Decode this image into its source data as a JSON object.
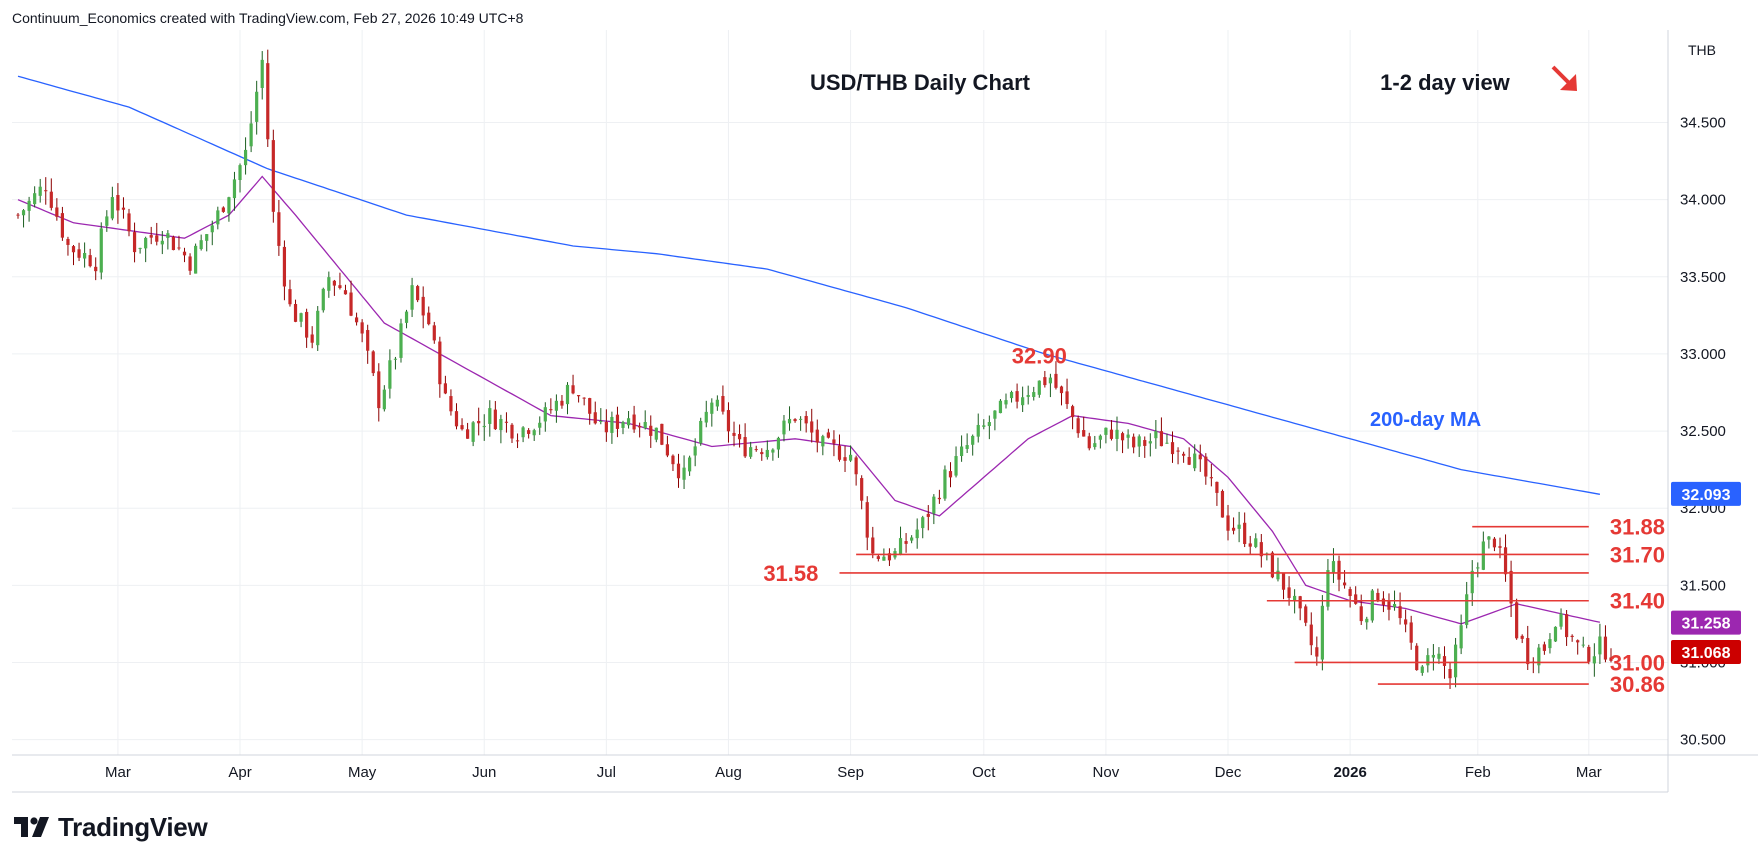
{
  "header": {
    "text": "Continuum_Economics created with TradingView.com, Feb 27, 2026 10:49 UTC+8"
  },
  "logo": {
    "text": "TradingView"
  },
  "colors": {
    "up": "#26a69a",
    "up_body": "#4caf50",
    "down": "#ef5350",
    "down_body": "#c62828",
    "ma200": "#2962ff",
    "ma_short": "#9c27b0",
    "level": "#e53935",
    "grid": "#eef0f3",
    "price_tag": "#cc0000",
    "ma200_tag": "#2962ff",
    "ma_short_tag": "#9c27b0"
  },
  "chart_data": {
    "type": "candlestick",
    "title": "USD/THB Daily Chart",
    "subtitle": "1-2 day view",
    "direction_icon": "arrow-down-right-icon",
    "currency": "THB",
    "x_labels": [
      "Mar",
      "Apr",
      "May",
      "Jun",
      "Jul",
      "Aug",
      "Sep",
      "Oct",
      "Nov",
      "Dec",
      "2026",
      "Feb",
      "Mar"
    ],
    "y_ticks": [
      "34.500",
      "34.000",
      "33.500",
      "33.000",
      "32.500",
      "32.000",
      "31.500",
      "31.000",
      "30.500"
    ],
    "ylim": [
      30.4,
      35.1
    ],
    "series_labels": {
      "ma200": "200-day MA"
    },
    "price_tags": {
      "ma200": "32.093",
      "ma_short": "31.258",
      "last": "31.068"
    },
    "levels": [
      {
        "label": "32.90",
        "value": 32.9
      },
      {
        "label": "31.88",
        "value": 31.88
      },
      {
        "label": "31.70",
        "value": 31.7
      },
      {
        "label": "31.58",
        "value": 31.58
      },
      {
        "label": "31.40",
        "value": 31.4
      },
      {
        "label": "31.00",
        "value": 31.0
      },
      {
        "label": "30.86",
        "value": 30.86
      }
    ],
    "close_path": [
      [
        0,
        33.9
      ],
      [
        5,
        34.1
      ],
      [
        9,
        33.7
      ],
      [
        14,
        33.6
      ],
      [
        17,
        34.05
      ],
      [
        21,
        33.7
      ],
      [
        26,
        33.8
      ],
      [
        31,
        33.6
      ],
      [
        36,
        33.9
      ],
      [
        41,
        34.3
      ],
      [
        44,
        34.9
      ],
      [
        46,
        33.9
      ],
      [
        49,
        33.3
      ],
      [
        53,
        33.1
      ],
      [
        56,
        33.5
      ],
      [
        59,
        33.4
      ],
      [
        62,
        33.1
      ],
      [
        65,
        32.7
      ],
      [
        68,
        33.0
      ],
      [
        71,
        33.4
      ],
      [
        74,
        33.2
      ],
      [
        77,
        32.7
      ],
      [
        80,
        32.5
      ],
      [
        85,
        32.6
      ],
      [
        90,
        32.5
      ],
      [
        95,
        32.6
      ],
      [
        100,
        32.8
      ],
      [
        105,
        32.5
      ],
      [
        110,
        32.6
      ],
      [
        115,
        32.5
      ],
      [
        120,
        32.2
      ],
      [
        125,
        32.7
      ],
      [
        130,
        32.4
      ],
      [
        135,
        32.4
      ],
      [
        140,
        32.6
      ],
      [
        145,
        32.4
      ],
      [
        150,
        32.35
      ],
      [
        154,
        31.7
      ],
      [
        158,
        31.7
      ],
      [
        163,
        31.9
      ],
      [
        167,
        32.2
      ],
      [
        171,
        32.4
      ],
      [
        176,
        32.6
      ],
      [
        181,
        32.75
      ],
      [
        186,
        32.85
      ],
      [
        189,
        32.65
      ],
      [
        193,
        32.4
      ],
      [
        197,
        32.5
      ],
      [
        201,
        32.4
      ],
      [
        205,
        32.45
      ],
      [
        210,
        32.4
      ],
      [
        214,
        32.2
      ],
      [
        218,
        31.9
      ],
      [
        222,
        31.8
      ],
      [
        226,
        31.6
      ],
      [
        229,
        31.45
      ],
      [
        232,
        31.2
      ],
      [
        234,
        31.02
      ],
      [
        236,
        31.65
      ],
      [
        239,
        31.5
      ],
      [
        242,
        31.3
      ],
      [
        245,
        31.45
      ],
      [
        248,
        31.35
      ],
      [
        251,
        31.1
      ],
      [
        253,
        30.92
      ],
      [
        255,
        31.1
      ],
      [
        258,
        30.9
      ],
      [
        260,
        31.2
      ],
      [
        262,
        31.6
      ],
      [
        264,
        31.75
      ],
      [
        266,
        31.8
      ],
      [
        268,
        31.55
      ],
      [
        270,
        31.2
      ],
      [
        272,
        31.05
      ],
      [
        275,
        31.1
      ],
      [
        277,
        31.3
      ],
      [
        279,
        31.2
      ],
      [
        282,
        31.05
      ],
      [
        285,
        31.1
      ],
      [
        287,
        31.07
      ]
    ],
    "ma200": [
      [
        0,
        34.8
      ],
      [
        20,
        34.6
      ],
      [
        45,
        34.2
      ],
      [
        70,
        33.9
      ],
      [
        100,
        33.7
      ],
      [
        115,
        33.65
      ],
      [
        135,
        33.55
      ],
      [
        160,
        33.3
      ],
      [
        185,
        33.0
      ],
      [
        210,
        32.75
      ],
      [
        235,
        32.5
      ],
      [
        260,
        32.25
      ],
      [
        285,
        32.09
      ]
    ],
    "ma_short": [
      [
        0,
        34.0
      ],
      [
        10,
        33.85
      ],
      [
        20,
        33.8
      ],
      [
        30,
        33.75
      ],
      [
        38,
        33.9
      ],
      [
        44,
        34.15
      ],
      [
        50,
        33.9
      ],
      [
        58,
        33.55
      ],
      [
        66,
        33.2
      ],
      [
        76,
        33.0
      ],
      [
        86,
        32.8
      ],
      [
        96,
        32.6
      ],
      [
        110,
        32.55
      ],
      [
        125,
        32.4
      ],
      [
        140,
        32.45
      ],
      [
        150,
        32.4
      ],
      [
        158,
        32.05
      ],
      [
        166,
        31.95
      ],
      [
        174,
        32.2
      ],
      [
        182,
        32.45
      ],
      [
        190,
        32.6
      ],
      [
        200,
        32.55
      ],
      [
        210,
        32.45
      ],
      [
        218,
        32.2
      ],
      [
        226,
        31.85
      ],
      [
        232,
        31.5
      ],
      [
        240,
        31.4
      ],
      [
        250,
        31.35
      ],
      [
        260,
        31.25
      ],
      [
        270,
        31.38
      ],
      [
        280,
        31.3
      ],
      [
        285,
        31.26
      ]
    ]
  }
}
